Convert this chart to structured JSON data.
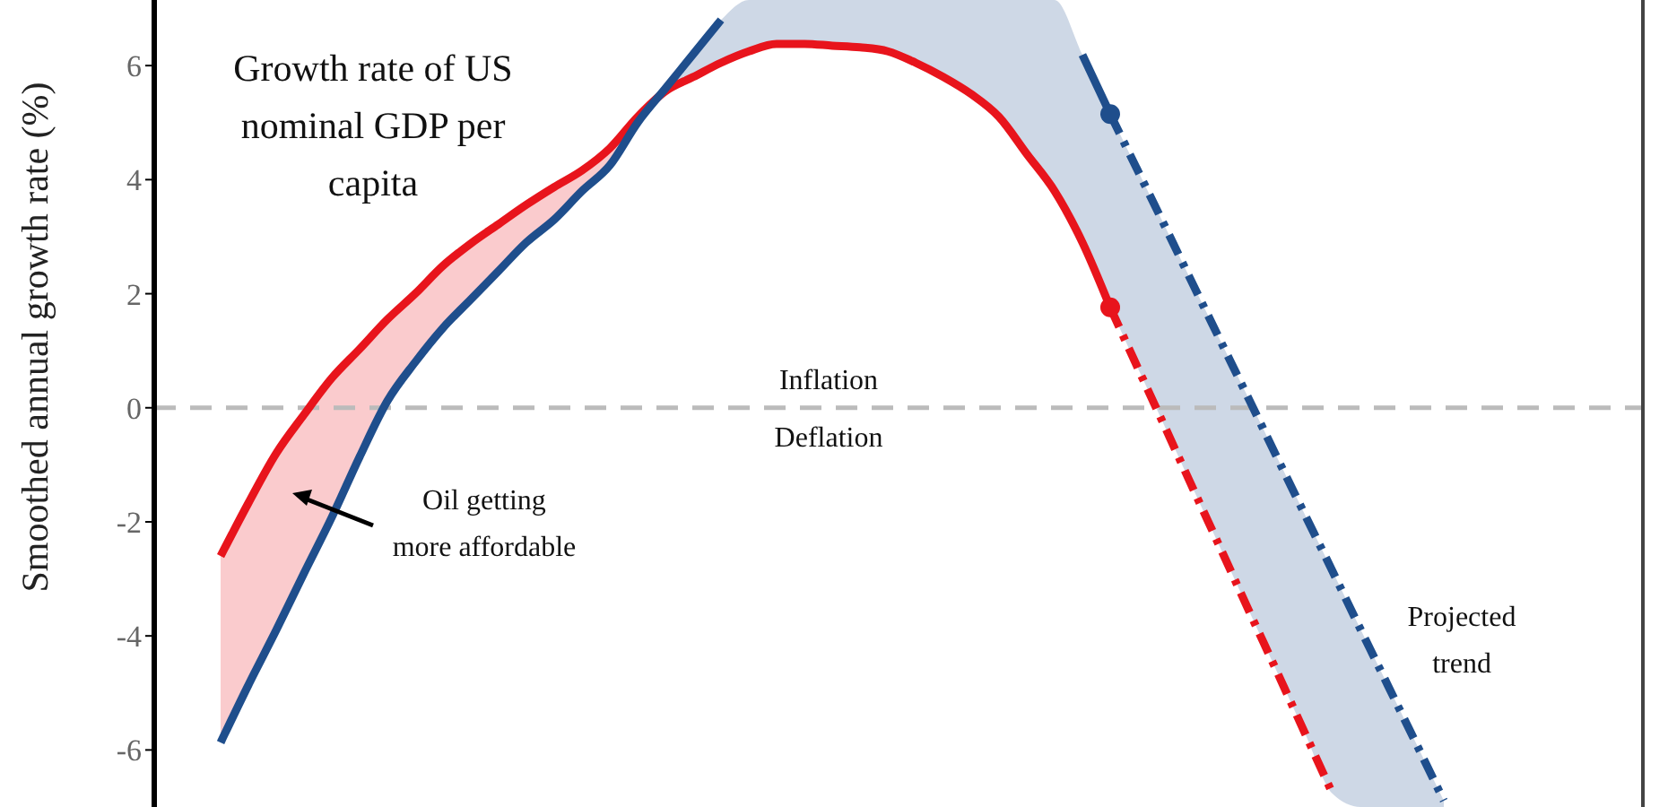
{
  "chart_data": {
    "type": "line",
    "ylabel": "Smoothed annual growth rate (%)",
    "categories": [
      null,
      null,
      null,
      null,
      null,
      null,
      null,
      null,
      null,
      null,
      null,
      null,
      null,
      null,
      null,
      null,
      null,
      null,
      null,
      null,
      null,
      null,
      null,
      null,
      null,
      null,
      null,
      null,
      null,
      null,
      null,
      null,
      null,
      null,
      null,
      null,
      null,
      null,
      null,
      null,
      null,
      null,
      null,
      null,
      null
    ],
    "series": [
      {
        "color": "#e8141c",
        "lower": [
          -5.87,
          -4.86,
          -3.9,
          -2.9,
          -1.92,
          -0.86,
          0.12,
          0.8,
          1.4,
          1.9,
          2.4,
          2.9,
          3.3,
          3.8,
          4.25,
          5.0,
          null,
          null,
          null,
          null,
          null,
          null,
          null,
          null,
          null,
          null,
          null,
          null,
          null,
          null,
          null,
          null,
          null,
          null,
          null,
          null,
          null,
          null,
          null,
          null,
          null,
          null,
          null,
          null,
          null
        ],
        "upper": [
          -2.6,
          -1.67,
          -0.8,
          -0.12,
          0.52,
          1.03,
          1.55,
          2.0,
          2.49,
          2.88,
          3.22,
          3.56,
          3.87,
          4.16,
          4.55,
          5.1,
          null,
          null,
          null,
          null,
          null,
          null,
          null,
          null,
          null,
          null,
          null,
          null,
          null,
          null,
          null,
          null,
          null,
          null,
          null,
          null,
          null,
          null,
          null,
          null,
          null,
          null,
          null,
          null,
          null
        ],
        "values": [
          -2.6,
          -1.67,
          -0.8,
          -0.12,
          0.52,
          1.03,
          1.55,
          2.0,
          2.49,
          2.88,
          3.22,
          3.56,
          3.87,
          4.16,
          4.55,
          5.1,
          5.55,
          5.8,
          6.05,
          6.25,
          6.38,
          6.38,
          6.35,
          6.32,
          6.25,
          6.05,
          5.8,
          5.5,
          5.1,
          4.45,
          3.8,
          2.9,
          1.76,
          null,
          null,
          null,
          null,
          null,
          null,
          null,
          null,
          null,
          null,
          null,
          null
        ]
      },
      {
        "color": "#1f4e8c",
        "lower": [
          null,
          null,
          null,
          null,
          null,
          null,
          null,
          null,
          null,
          null,
          null,
          null,
          null,
          null,
          null,
          null,
          5.55,
          5.8,
          6.05,
          6.25,
          6.38,
          6.38,
          6.35,
          6.32,
          6.25,
          6.05,
          5.8,
          5.5,
          5.1,
          4.45,
          3.8,
          2.9,
          1.76,
          null,
          null,
          null,
          null,
          null,
          null,
          null,
          null,
          null,
          null,
          null,
          null
        ],
        "upper": [
          null,
          null,
          null,
          null,
          null,
          null,
          null,
          null,
          null,
          null,
          null,
          null,
          null,
          null,
          null,
          null,
          5.6,
          6.2,
          6.8,
          7.15,
          7.15,
          7.15,
          7.15,
          7.15,
          7.15,
          7.15,
          7.15,
          7.15,
          7.15,
          7.15,
          7.15,
          6.19,
          5.15,
          null,
          null,
          null,
          null,
          null,
          null,
          null,
          null,
          null,
          null,
          null,
          null
        ],
        "values": [
          -5.87,
          -4.86,
          -3.9,
          -2.9,
          -1.92,
          -0.86,
          0.12,
          0.8,
          1.4,
          1.9,
          2.4,
          2.9,
          3.3,
          3.8,
          4.25,
          5.0,
          5.6,
          6.2,
          6.8,
          null,
          null,
          null,
          null,
          null,
          null,
          null,
          null,
          null,
          null,
          null,
          null,
          6.19,
          5.15,
          null,
          null,
          null,
          null,
          null,
          null,
          null,
          null,
          null,
          null,
          null,
          null
        ]
      },
      {
        "color": "#e8141c",
        "line_style": "dashed",
        "values": [
          null,
          null,
          null,
          null,
          null,
          null,
          null,
          null,
          null,
          null,
          null,
          null,
          null,
          null,
          null,
          null,
          null,
          null,
          null,
          null,
          null,
          null,
          null,
          null,
          null,
          null,
          null,
          null,
          null,
          null,
          null,
          null,
          1.76,
          0.69,
          -0.37,
          -1.44,
          -2.5,
          -3.57,
          -4.63,
          -5.7,
          -6.77,
          null,
          null,
          null,
          null
        ]
      },
      {
        "color": "#1f4e8c",
        "line_style": "dashed",
        "lower": [
          null,
          null,
          null,
          null,
          null,
          null,
          null,
          null,
          null,
          null,
          null,
          null,
          null,
          null,
          null,
          null,
          null,
          null,
          null,
          null,
          null,
          null,
          null,
          null,
          null,
          null,
          null,
          null,
          null,
          null,
          null,
          null,
          1.76,
          0.69,
          -0.37,
          -1.44,
          -2.5,
          -3.57,
          -4.63,
          -5.7,
          -6.77,
          -7,
          -7,
          -7,
          -7
        ],
        "upper": [
          null,
          null,
          null,
          null,
          null,
          null,
          null,
          null,
          null,
          null,
          null,
          null,
          null,
          null,
          null,
          null,
          null,
          null,
          null,
          null,
          null,
          null,
          null,
          null,
          null,
          null,
          null,
          null,
          null,
          null,
          null,
          null,
          5.15,
          4.15,
          3.15,
          2.14,
          1.14,
          0.14,
          -0.87,
          -1.87,
          -2.87,
          -3.88,
          -4.88,
          -5.88,
          -6.89
        ],
        "values": [
          null,
          null,
          null,
          null,
          null,
          null,
          null,
          null,
          null,
          null,
          null,
          null,
          null,
          null,
          null,
          null,
          null,
          null,
          null,
          null,
          null,
          null,
          null,
          null,
          null,
          null,
          null,
          null,
          null,
          null,
          null,
          null,
          5.15,
          4.15,
          3.15,
          2.14,
          1.14,
          0.14,
          -0.87,
          -1.87,
          -2.87,
          -3.88,
          -4.88,
          -5.88,
          -6.89
        ]
      },
      {
        "type": "scatter",
        "marker": "circle",
        "color": "#e8141c",
        "values": [
          null,
          null,
          null,
          null,
          null,
          null,
          null,
          null,
          null,
          null,
          null,
          null,
          null,
          null,
          null,
          null,
          null,
          null,
          null,
          null,
          null,
          null,
          null,
          null,
          null,
          null,
          null,
          null,
          null,
          null,
          null,
          null,
          1.76,
          null,
          null,
          null,
          null,
          null,
          null,
          null,
          null,
          null,
          null,
          null,
          null
        ]
      },
      {
        "type": "scatter",
        "marker": "circle",
        "color": "#1f4e8c",
        "values": [
          null,
          null,
          null,
          null,
          null,
          null,
          null,
          null,
          null,
          null,
          null,
          null,
          null,
          null,
          null,
          null,
          null,
          null,
          null,
          null,
          null,
          null,
          null,
          null,
          null,
          null,
          null,
          null,
          null,
          null,
          null,
          null,
          5.15,
          null,
          null,
          null,
          null,
          null,
          null,
          null,
          null,
          null,
          null,
          null,
          null
        ]
      }
    ],
    "ylim": [
      -7,
      7.15
    ],
    "yticks": [
      -6,
      -4,
      -2,
      0,
      2,
      4,
      6
    ],
    "tick_labels": "y",
    "grid": false,
    "legend": false,
    "ref_lines": [
      {
        "axis": "y",
        "value": 0,
        "color": "#bbbbbb",
        "line_style": "dashed"
      }
    ],
    "annotations": [
      "Growth rate of US nominal GDP per capita",
      "Inflation",
      "Deflation",
      "Oil getting more affordable",
      "Projected trend"
    ]
  }
}
